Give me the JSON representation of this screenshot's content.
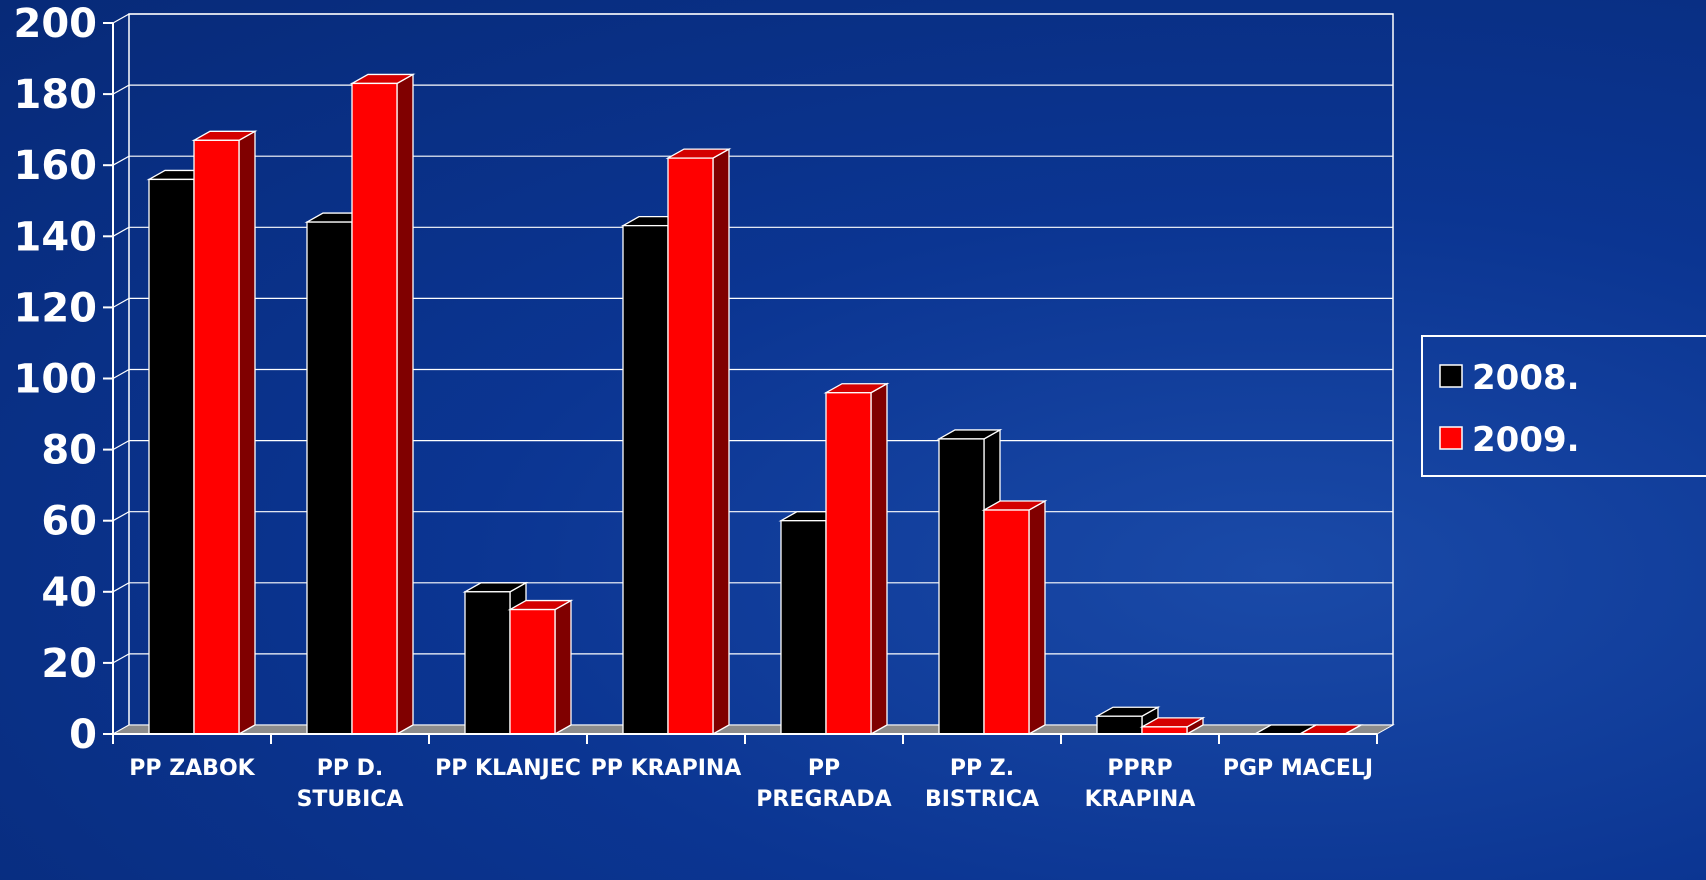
{
  "chart_data": {
    "type": "bar",
    "categories": [
      [
        "PP ZABOK"
      ],
      [
        "PP D.",
        "STUBICA"
      ],
      [
        "PP KLANJEC"
      ],
      [
        "PP KRAPINA"
      ],
      [
        "PP",
        "PREGRADA"
      ],
      [
        "PP Z.",
        "BISTRICA"
      ],
      [
        "PPRP",
        "KRAPINA"
      ],
      [
        "PGP MACELJ"
      ]
    ],
    "series": [
      {
        "name": "2008.",
        "color": "#000000",
        "values": [
          156,
          144,
          40,
          143,
          60,
          83,
          5,
          0
        ]
      },
      {
        "name": "2009.",
        "color": "#ff0000",
        "values": [
          167,
          183,
          35,
          162,
          96,
          63,
          2,
          0
        ]
      }
    ],
    "ylim": [
      0,
      200
    ],
    "yticks": [
      0,
      20,
      40,
      60,
      80,
      100,
      120,
      140,
      160,
      180,
      200
    ],
    "grid": true,
    "legend_position": "right",
    "colors": {
      "background": "#0b3592",
      "gridline": "#ffffff",
      "floor": "#8c8c8c"
    }
  }
}
